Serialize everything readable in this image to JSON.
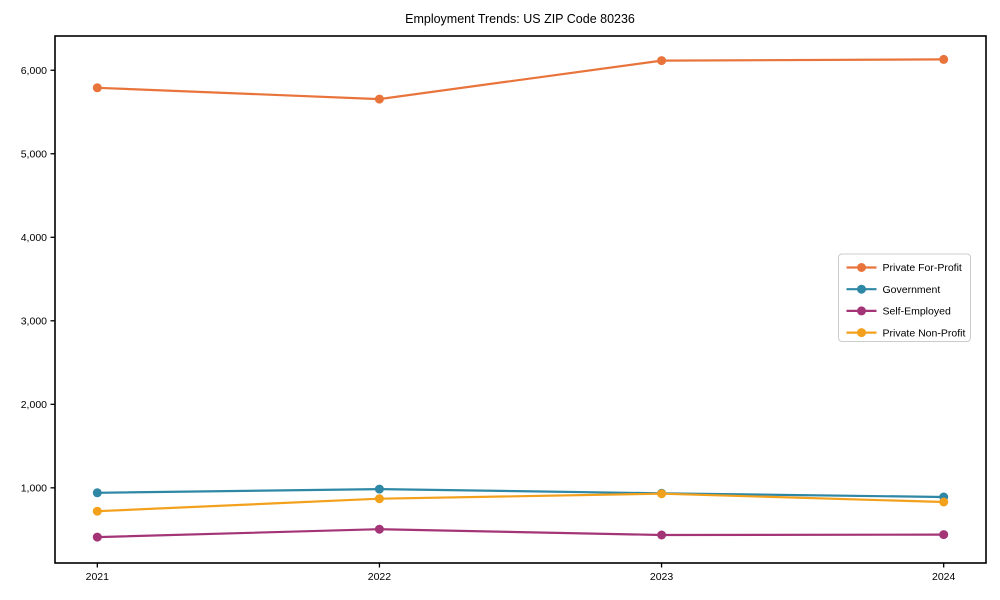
{
  "chart_data": {
    "type": "line",
    "title": "Employment Trends: US ZIP Code 80236",
    "xlabel": "",
    "ylabel": "",
    "categories": [
      "2021",
      "2022",
      "2023",
      "2024"
    ],
    "series": [
      {
        "name": "Private For-Profit",
        "color": "#e8743b",
        "values": [
          5790,
          5655,
          6115,
          6130
        ]
      },
      {
        "name": "Government",
        "color": "#2e87a5",
        "values": [
          940,
          985,
          935,
          890
        ]
      },
      {
        "name": "Self-Employed",
        "color": "#a33577",
        "values": [
          410,
          505,
          435,
          440
        ]
      },
      {
        "name": "Private Non-Profit",
        "color": "#f3a11d",
        "values": [
          720,
          870,
          930,
          830
        ]
      }
    ],
    "y_ticks": [
      1000,
      2000,
      3000,
      4000,
      5000,
      6000
    ],
    "y_tick_labels": [
      "1,000",
      "2,000",
      "3,000",
      "4,000",
      "5,000",
      "6,000"
    ],
    "ylim": [
      100,
      6410
    ],
    "xlim_index": [
      -0.15,
      3.15
    ],
    "grid": false,
    "legend_position": "center right",
    "frame_color": "#000000",
    "marker": "circle"
  }
}
